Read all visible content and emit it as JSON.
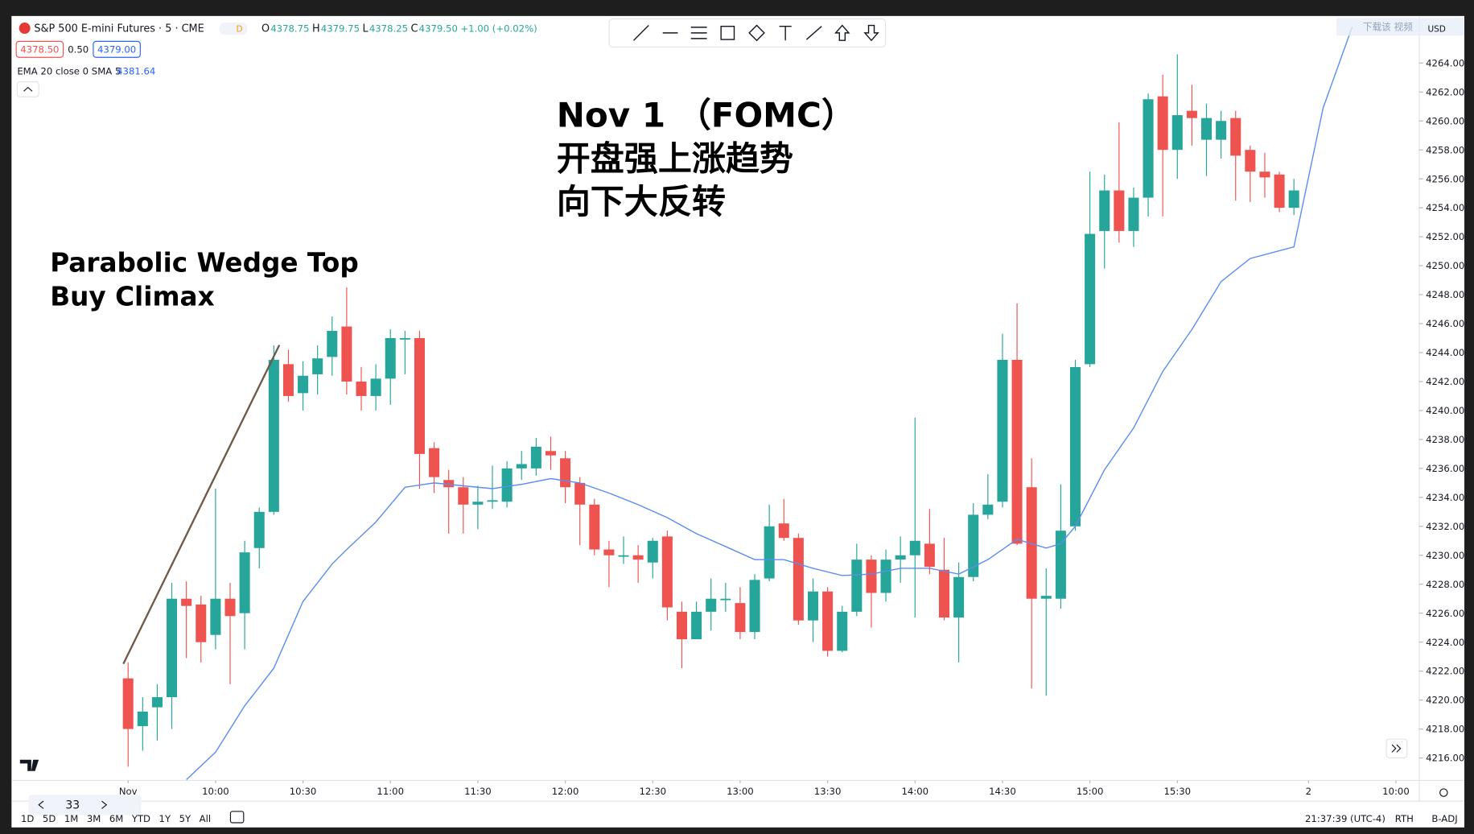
{
  "header": {
    "symbol": "S&P 500 E-mini Futures · 5 · CME",
    "badge": "D",
    "ohlc": [
      {
        "label": "O",
        "value": "4378.75"
      },
      {
        "label": "H",
        "value": "4379.75"
      },
      {
        "label": "L",
        "value": "4378.25"
      },
      {
        "label": "C",
        "value": "4379.50"
      }
    ],
    "change": "+1.00 (+0.02%)",
    "bid": "4378.50",
    "spread": "0.50",
    "ask": "4379.00",
    "indicator": "EMA 20 close 0 SMA 5",
    "indicator_value": "4381.64"
  },
  "annotations": {
    "title_lines": [
      "Nov 1 （FOMC）",
      "开盘强上涨趋势",
      "向下大反转"
    ],
    "pattern_lines": [
      "Parabolic Wedge Top",
      "Buy Climax"
    ]
  },
  "watermark": "下载该 视频",
  "currency": "USD",
  "toolbar": {
    "periods": [
      "1D",
      "5D",
      "1M",
      "3M",
      "6M",
      "YTD",
      "1Y",
      "5Y",
      "All"
    ],
    "bar_count": "33",
    "clock": "21:37:39 (UTC-4)",
    "session": "RTH",
    "adjust": "B-ADJ"
  },
  "chart_data": {
    "type": "candlestick",
    "up_color": "#26a69a",
    "down_color": "#ef5350",
    "open": [
      4221.5,
      4218.2,
      4219.5,
      4220.2,
      4227.0,
      4226.6,
      4224.5,
      4227.0,
      4226.0,
      4230.5,
      4233.0,
      4243.2,
      4241.2,
      4242.5,
      4243.7,
      4245.8,
      4242.0,
      4241.0,
      4242.2,
      4244.9,
      4245.0,
      4237.4,
      4235.2,
      4234.7,
      4233.5,
      4233.7,
      4233.7,
      4236.0,
      4236.0,
      4237.2,
      4236.7,
      4235.0,
      4233.5,
      4230.4,
      4229.9,
      4230.0,
      4229.5,
      4231.3,
      4226.1,
      4224.2,
      4226.1,
      4226.9,
      4226.7,
      4224.7,
      4228.4,
      4232.2,
      4231.2,
      4225.5,
      4227.5,
      4223.4,
      4226.1,
      4229.7,
      4227.4,
      4229.7,
      4230.0,
      4230.8,
      4229.0,
      4225.7,
      4228.5,
      4232.8,
      4233.7,
      4243.5,
      4234.7,
      4227.0,
      4227.0,
      4232.0,
      4243.2,
      4252.4,
      4255.2,
      4252.4,
      4254.7,
      4261.7,
      4258.0,
      4260.7,
      4258.7,
      4258.7,
      4260.2,
      4258.0,
      4256.5,
      4256.3,
      4254.0
    ],
    "high": [
      4222.6,
      4220.2,
      4221.1,
      4228.1,
      4228.2,
      4227.2,
      4234.6,
      4228.1,
      4231.0,
      4233.3,
      4244.5,
      4244.2,
      4243.4,
      4244.5,
      4246.5,
      4248.5,
      4243.0,
      4243.2,
      4245.6,
      4245.5,
      4245.5,
      4237.8,
      4235.9,
      4235.4,
      4234.8,
      4236.2,
      4236.5,
      4237.2,
      4238.1,
      4238.2,
      4237.2,
      4235.4,
      4233.9,
      4231.0,
      4231.3,
      4230.7,
      4231.2,
      4231.7,
      4226.8,
      4226.8,
      4228.4,
      4228.1,
      4227.8,
      4228.7,
      4233.5,
      4233.9,
      4231.5,
      4228.4,
      4227.8,
      4226.5,
      4230.8,
      4230.0,
      4230.4,
      4231.3,
      4239.5,
      4233.2,
      4231.2,
      4229.5,
      4233.6,
      4235.6,
      4245.3,
      4247.4,
      4236.7,
      4229.1,
      4234.9,
      4243.5,
      4256.5,
      4256.3,
      4259.9,
      4255.4,
      4261.9,
      4263.2,
      4264.6,
      4262.5,
      4261.2,
      4260.7,
      4260.7,
      4258.3,
      4257.8,
      4256.5,
      4256.0
    ],
    "low": [
      4215.4,
      4216.5,
      4217.2,
      4218.0,
      4222.9,
      4222.6,
      4223.5,
      4221.1,
      4223.5,
      4229.1,
      4232.8,
      4240.6,
      4240.0,
      4241.1,
      4242.4,
      4241.1,
      4240.0,
      4240.0,
      4240.4,
      4242.5,
      4234.6,
      4234.3,
      4231.5,
      4231.5,
      4231.8,
      4233.2,
      4233.3,
      4235.2,
      4235.5,
      4235.9,
      4233.6,
      4230.7,
      4230.0,
      4227.8,
      4229.4,
      4228.1,
      4228.4,
      4225.5,
      4222.2,
      4224.2,
      4224.8,
      4226.1,
      4224.2,
      4224.2,
      4228.2,
      4231.0,
      4225.2,
      4224.0,
      4223.0,
      4223.3,
      4225.8,
      4225.0,
      4226.8,
      4228.1,
      4225.7,
      4228.7,
      4225.5,
      4222.6,
      4228.2,
      4232.5,
      4233.3,
      4230.7,
      4220.8,
      4220.3,
      4226.3,
      4231.7,
      4243.0,
      4249.8,
      4251.6,
      4251.3,
      4253.4,
      4253.4,
      4256.0,
      4258.3,
      4256.2,
      4257.4,
      4254.5,
      4254.4,
      4254.7,
      4253.7,
      4253.5
    ],
    "close": [
      4218.0,
      4219.2,
      4220.2,
      4227.0,
      4226.5,
      4224.0,
      4227.0,
      4225.8,
      4230.2,
      4233.0,
      4243.5,
      4241.0,
      4242.4,
      4243.6,
      4245.5,
      4242.0,
      4241.0,
      4242.2,
      4245.0,
      4245.0,
      4237.0,
      4235.4,
      4234.7,
      4233.5,
      4233.7,
      4233.8,
      4236.0,
      4236.3,
      4237.5,
      4236.9,
      4234.7,
      4233.5,
      4230.4,
      4230.0,
      4230.0,
      4229.7,
      4231.0,
      4226.4,
      4224.2,
      4226.1,
      4227.0,
      4227.0,
      4224.7,
      4228.3,
      4232.0,
      4231.2,
      4225.5,
      4227.5,
      4223.4,
      4226.1,
      4229.7,
      4227.4,
      4229.7,
      4230.0,
      4231.0,
      4229.2,
      4225.7,
      4228.5,
      4232.8,
      4233.5,
      4243.5,
      4230.8,
      4227.0,
      4227.2,
      4231.7,
      4243.0,
      4252.2,
      4255.2,
      4252.4,
      4254.7,
      4261.5,
      4258.0,
      4260.4,
      4260.2,
      4260.2,
      4260.0,
      4257.6,
      4256.5,
      4256.1,
      4254.0,
      4255.2
    ],
    "ema": {
      "color": "#5b8def",
      "x": [
        4,
        6,
        8,
        10,
        12,
        14,
        15,
        17,
        19,
        21,
        23,
        25,
        27,
        29,
        31,
        33,
        35,
        37,
        39,
        41,
        43,
        45,
        47,
        49,
        51,
        53,
        55,
        57,
        59,
        61,
        63,
        64,
        65,
        67,
        69,
        71,
        73,
        75,
        77,
        80,
        82,
        84
      ],
      "values": [
        4214.5,
        4216.4,
        4219.6,
        4222.2,
        4226.8,
        4229.4,
        4230.4,
        4232.3,
        4234.7,
        4235.0,
        4234.8,
        4234.6,
        4234.9,
        4235.3,
        4235.0,
        4234.3,
        4233.5,
        4232.6,
        4231.5,
        4230.6,
        4229.7,
        4229.7,
        4229.1,
        4228.6,
        4228.7,
        4229.1,
        4229.1,
        4228.7,
        4229.7,
        4231.1,
        4230.5,
        4230.8,
        4232.0,
        4235.9,
        4238.8,
        4242.7,
        4245.6,
        4248.9,
        4250.5,
        4251.3,
        4260.9,
        4266.5
      ]
    },
    "xlim": [
      -8,
      88.6
    ],
    "xticks": [
      {
        "value": 0,
        "label": "Nov"
      },
      {
        "value": 6,
        "label": "10:00"
      },
      {
        "value": 12,
        "label": "10:30"
      },
      {
        "value": 18,
        "label": "11:00"
      },
      {
        "value": 24,
        "label": "11:30"
      },
      {
        "value": 30,
        "label": "12:00"
      },
      {
        "value": 36,
        "label": "12:30"
      },
      {
        "value": 42,
        "label": "13:00"
      },
      {
        "value": 48,
        "label": "13:30"
      },
      {
        "value": 54,
        "label": "14:00"
      },
      {
        "value": 60,
        "label": "14:30"
      },
      {
        "value": 66,
        "label": "15:00"
      },
      {
        "value": 72,
        "label": "15:30"
      },
      {
        "value": 81,
        "label": "2"
      },
      {
        "value": 87,
        "label": "10:00"
      }
    ],
    "ylim": [
      4214.45,
      4267.25
    ],
    "yticks": [
      {
        "value": 4216,
        "label": "4216.00"
      },
      {
        "value": 4218,
        "label": "4218.00"
      },
      {
        "value": 4220,
        "label": "4220.00"
      },
      {
        "value": 4222,
        "label": "4222.00"
      },
      {
        "value": 4224,
        "label": "4224.00"
      },
      {
        "value": 4226,
        "label": "4226.00"
      },
      {
        "value": 4228,
        "label": "4228.00"
      },
      {
        "value": 4230,
        "label": "4230.00"
      },
      {
        "value": 4232,
        "label": "4232.00"
      },
      {
        "value": 4234,
        "label": "4234.00"
      },
      {
        "value": 4236,
        "label": "4236.00"
      },
      {
        "value": 4238,
        "label": "4238.00"
      },
      {
        "value": 4240,
        "label": "4240.00"
      },
      {
        "value": 4242,
        "label": "4242.00"
      },
      {
        "value": 4244,
        "label": "4244.00"
      },
      {
        "value": 4246,
        "label": "4246.00"
      },
      {
        "value": 4248,
        "label": "4248.00"
      },
      {
        "value": 4250,
        "label": "4250.00"
      },
      {
        "value": 4252,
        "label": "4252.00"
      },
      {
        "value": 4254,
        "label": "4254.00"
      },
      {
        "value": 4256,
        "label": "4256.00"
      },
      {
        "value": 4258,
        "label": "4258.00"
      },
      {
        "value": 4260,
        "label": "4260.00"
      },
      {
        "value": 4262,
        "label": "4262.00"
      },
      {
        "value": 4264,
        "label": "4264.00"
      }
    ],
    "grid": false
  }
}
